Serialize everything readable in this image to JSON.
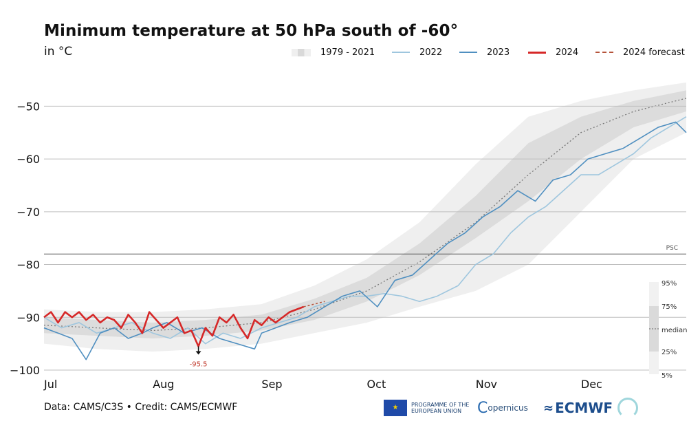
{
  "title": "Minimum temperature at 50 hPa south of -60°",
  "subtitle": "in °C",
  "legend": [
    {
      "label": "1979 - 2021",
      "kind": "band",
      "color": "#d9d9d9"
    },
    {
      "label": "2022",
      "kind": "line",
      "color": "#9ec6de"
    },
    {
      "label": "2023",
      "kind": "line",
      "color": "#4f8fc0"
    },
    {
      "label": "2024",
      "kind": "line",
      "color": "#d62828"
    },
    {
      "label": "2024 forecast",
      "kind": "dash",
      "color": "#b5533a"
    }
  ],
  "footer": {
    "credit": "Data: CAMS/C3S • Credit: CAMS/ECMWF",
    "eu_text": "PROGRAMME OF THE EUROPEAN UNION",
    "copernicus": "opernicus",
    "ecmwf": "ECMWF"
  },
  "percentile_key": [
    "95%",
    "75%",
    "median",
    "25%",
    "5%"
  ],
  "chart_data": {
    "type": "line",
    "title": "Minimum temperature at 50 hPa south of -60°",
    "ylabel": "in °C",
    "xlabel": "",
    "x_tick_labels": [
      "Jul",
      "Aug",
      "Sep",
      "Oct",
      "Nov",
      "Dec"
    ],
    "x_tick_days": [
      0,
      31,
      62,
      92,
      123,
      153
    ],
    "xlim_days": [
      0,
      183
    ],
    "y_ticks": [
      -50,
      -60,
      -70,
      -80,
      -90,
      -100
    ],
    "ylim": [
      -100,
      -45
    ],
    "grid": true,
    "legend_position": "top",
    "reference_line": {
      "label": "PSC",
      "value": -78
    },
    "annotation": {
      "label": "-95.5",
      "day": 44,
      "value": -95.5
    },
    "climatology_1979_2021": {
      "days": [
        0,
        15,
        31,
        46,
        62,
        77,
        92,
        107,
        123,
        138,
        153,
        168,
        183
      ],
      "p5": [
        -95,
        -96,
        -96.5,
        -96,
        -95,
        -93,
        -91,
        -88,
        -85,
        -80,
        -70,
        -60,
        -55
      ],
      "p25": [
        -93,
        -93.5,
        -94,
        -93.5,
        -92.5,
        -90.5,
        -87,
        -82,
        -75,
        -68,
        -60,
        -54,
        -51
      ],
      "median": [
        -91.5,
        -92,
        -92.5,
        -92,
        -91,
        -88.5,
        -85,
        -79.5,
        -72,
        -63,
        -55,
        -51,
        -48.5
      ],
      "p75": [
        -90,
        -90.5,
        -91,
        -90.5,
        -89.5,
        -86.5,
        -82.5,
        -76,
        -67,
        -57,
        -52,
        -49,
        -47
      ],
      "p95": [
        -88.5,
        -89,
        -89,
        -88.5,
        -87.5,
        -84,
        -79,
        -72,
        -61,
        -52,
        -49,
        -47,
        -45.5
      ]
    },
    "series": [
      {
        "name": "2022",
        "color": "#9ec6de",
        "days": [
          0,
          5,
          10,
          15,
          20,
          25,
          31,
          36,
          41,
          46,
          51,
          56,
          62,
          67,
          72,
          77,
          82,
          87,
          92,
          97,
          102,
          107,
          112,
          118,
          123,
          128,
          133,
          138,
          143,
          148,
          153,
          158,
          163,
          168,
          173,
          178,
          183
        ],
        "values": [
          -90,
          -92,
          -91,
          -93,
          -92,
          -91,
          -93,
          -94,
          -92,
          -95,
          -93,
          -94,
          -92,
          -91,
          -90,
          -88,
          -87,
          -86,
          -86,
          -85.5,
          -86,
          -87,
          -86,
          -84,
          -80,
          -78,
          -74,
          -71,
          -69,
          -66,
          -63,
          -63,
          -61,
          -59,
          -56,
          -54,
          -52
        ]
      },
      {
        "name": "2023",
        "color": "#4f8fc0",
        "days": [
          0,
          4,
          8,
          12,
          16,
          20,
          24,
          28,
          31,
          35,
          40,
          45,
          50,
          55,
          60,
          62,
          66,
          70,
          75,
          80,
          85,
          90,
          95,
          100,
          105,
          110,
          115,
          120,
          125,
          130,
          135,
          140,
          145,
          150,
          155,
          160,
          165,
          170,
          175,
          180,
          183
        ],
        "values": [
          -92,
          -93,
          -94,
          -98,
          -93,
          -92,
          -94,
          -93,
          -92,
          -91,
          -93,
          -92,
          -94,
          -95,
          -96,
          -93,
          -92,
          -91,
          -90,
          -88,
          -86,
          -85,
          -88,
          -83,
          -82,
          -79,
          -76,
          -74,
          -71,
          -69,
          -66,
          -68,
          -64,
          -63,
          -60,
          -59,
          -58,
          -56,
          -54,
          -53,
          -55
        ]
      },
      {
        "name": "2024",
        "color": "#d62828",
        "days": [
          0,
          2,
          4,
          6,
          8,
          10,
          12,
          14,
          16,
          18,
          20,
          22,
          24,
          26,
          28,
          30,
          32,
          34,
          36,
          38,
          40,
          42,
          44,
          46,
          48,
          50,
          52,
          54,
          56,
          58,
          60,
          62,
          64,
          66,
          68,
          70,
          72,
          74
        ],
        "values": [
          -90,
          -89,
          -91,
          -89,
          -90,
          -89,
          -90.5,
          -89.5,
          -91,
          -90,
          -90.5,
          -92,
          -89.5,
          -91,
          -93,
          -89,
          -90.5,
          -92,
          -91,
          -90,
          -93,
          -92.5,
          -95.5,
          -92,
          -93.5,
          -90,
          -91,
          -89.5,
          -92,
          -94,
          -90.5,
          -91.5,
          -90,
          -91,
          -90,
          -89,
          -88.5,
          -88
        ]
      },
      {
        "name": "2024 forecast",
        "color": "#b5533a",
        "days": [
          74,
          77,
          80
        ],
        "values": [
          -88,
          -87.5,
          -87
        ]
      }
    ]
  }
}
